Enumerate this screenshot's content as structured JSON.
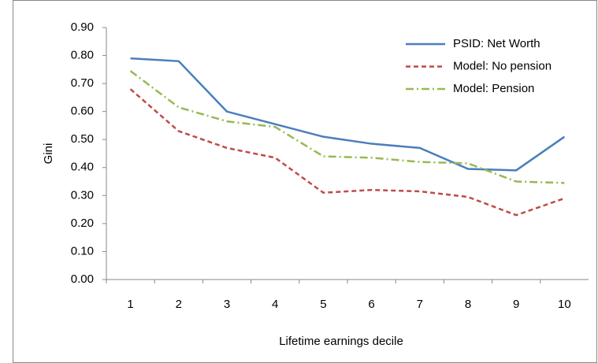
{
  "chart_data": {
    "type": "line",
    "y_label": "Gini",
    "x_label": "Lifetime earnings decile",
    "categories": [
      "1",
      "2",
      "3",
      "4",
      "5",
      "6",
      "7",
      "8",
      "9",
      "10"
    ],
    "series": [
      {
        "name": "PSID: Net Worth",
        "color": "#4a7ebb",
        "dash": "solid",
        "values": [
          0.79,
          0.78,
          0.6,
          0.555,
          0.51,
          0.485,
          0.47,
          0.395,
          0.39,
          0.51
        ]
      },
      {
        "name": "Model: No pension",
        "color": "#be4b48",
        "dash": "dash",
        "values": [
          0.68,
          0.53,
          0.47,
          0.435,
          0.31,
          0.32,
          0.315,
          0.295,
          0.23,
          0.29
        ]
      },
      {
        "name": "Model: Pension",
        "color": "#98b954",
        "dash": "dashdot",
        "values": [
          0.745,
          0.615,
          0.565,
          0.545,
          0.44,
          0.435,
          0.42,
          0.415,
          0.35,
          0.345
        ]
      }
    ],
    "ylim": [
      0,
      0.9
    ],
    "yticks": [
      {
        "value": 0,
        "label": "0.00"
      },
      {
        "value": 0.1,
        "label": "0.10"
      },
      {
        "value": 0.2,
        "label": "0.20"
      },
      {
        "value": 0.3,
        "label": "0.30"
      },
      {
        "value": 0.4,
        "label": "0.40"
      },
      {
        "value": 0.5,
        "label": "0.50"
      },
      {
        "value": 0.6,
        "label": "0.60"
      },
      {
        "value": 0.7,
        "label": "0.70"
      },
      {
        "value": 0.8,
        "label": "0.80"
      },
      {
        "value": 0.9,
        "label": "0.90"
      }
    ],
    "grid": false,
    "legend": "top-right"
  }
}
